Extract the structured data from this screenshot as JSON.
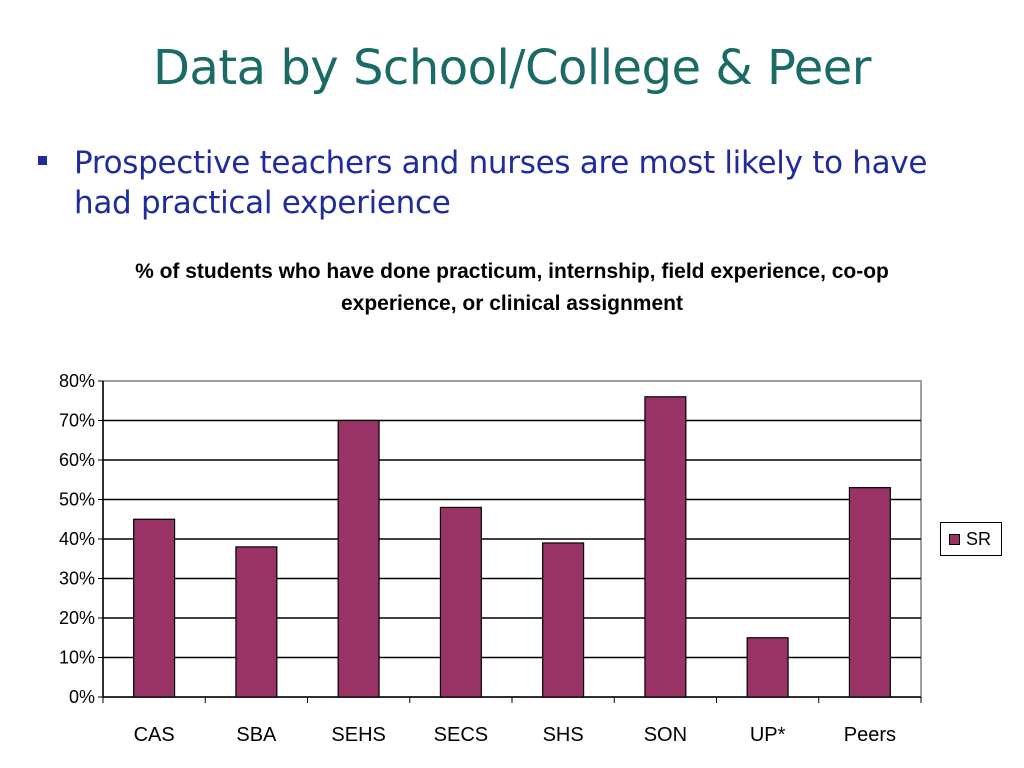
{
  "slide": {
    "title": "Data by School/College & Peer",
    "bullet": "Prospective teachers and nurses are most likely to have had practical experience"
  },
  "colors": {
    "title": "#1a6b66",
    "bullet": "#1f2b9e",
    "bar": "#993366"
  },
  "chart_data": {
    "type": "bar",
    "title": "% of students who have done practicum, internship, field experience, co-op experience, or clinical assignment",
    "categories": [
      "CAS",
      "SBA",
      "SEHS",
      "SECS",
      "SHS",
      "SON",
      "UP*",
      "Peers"
    ],
    "series": [
      {
        "name": "SR",
        "values": [
          45,
          38,
          70,
          48,
          39,
          76,
          15,
          53
        ]
      }
    ],
    "ylim": [
      0,
      80
    ],
    "yticks": [
      "0%",
      "10%",
      "20%",
      "30%",
      "40%",
      "50%",
      "60%",
      "70%",
      "80%"
    ],
    "grid": true,
    "legend": "right"
  }
}
